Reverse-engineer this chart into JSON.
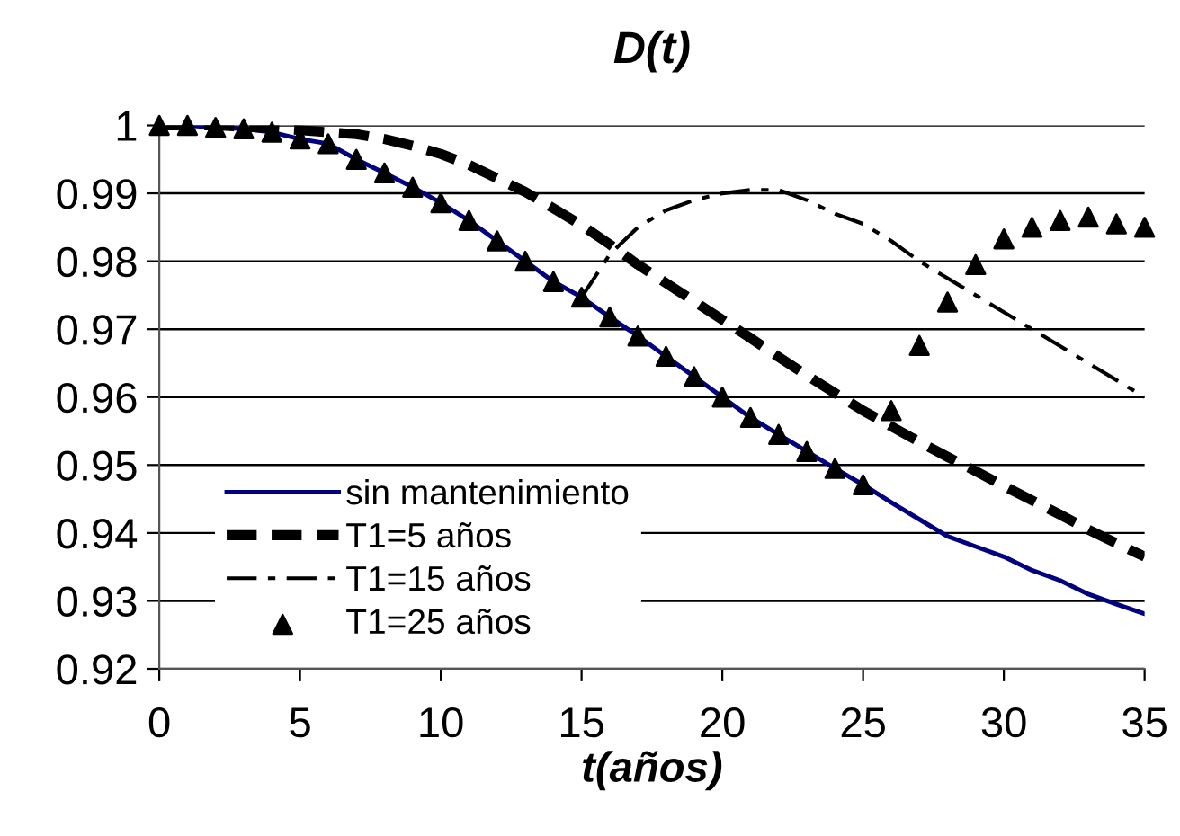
{
  "chart_data": {
    "type": "line",
    "title": "D(t)",
    "xlabel": "t(años)",
    "x": [
      0,
      1,
      2,
      3,
      4,
      5,
      6,
      7,
      8,
      9,
      10,
      11,
      12,
      13,
      14,
      15,
      16,
      17,
      18,
      19,
      20,
      21,
      22,
      23,
      24,
      25,
      26,
      27,
      28,
      29,
      30,
      31,
      32,
      33,
      34,
      35
    ],
    "series": [
      {
        "name": "sin mantenimiento",
        "color": "#000080",
        "line_style": "solid",
        "marker": "none",
        "values": [
          1.0,
          1.0,
          0.9997,
          0.9995,
          0.999,
          0.998,
          0.9973,
          0.995,
          0.993,
          0.9909,
          0.9886,
          0.986,
          0.983,
          0.98,
          0.977,
          0.9747,
          0.9718,
          0.969,
          0.966,
          0.963,
          0.96,
          0.957,
          0.9545,
          0.952,
          0.9495,
          0.9471,
          0.9445,
          0.942,
          0.9395,
          0.938,
          0.9365,
          0.9345,
          0.933,
          0.931,
          0.9295,
          0.9281
        ]
      },
      {
        "name": "T1=5 años",
        "color": "#000000",
        "line_style": "dashed",
        "marker": "none",
        "values": [
          1.0,
          1.0,
          1.0,
          0.9998,
          0.9996,
          0.9993,
          0.999,
          0.9987,
          0.998,
          0.997,
          0.9958,
          0.9942,
          0.9922,
          0.9902,
          0.9878,
          0.9853,
          0.9825,
          0.9795,
          0.9768,
          0.9741,
          0.9714,
          0.9687,
          0.9659,
          0.9632,
          0.9606,
          0.958,
          0.9557,
          0.9534,
          0.9512,
          0.9491,
          0.9469,
          0.9448,
          0.9427,
          0.9405,
          0.9385,
          0.9365
        ]
      },
      {
        "name": "T1=15 años",
        "color": "#000000",
        "line_style": "dashdot",
        "marker": "none",
        "x": [
          15,
          16,
          17,
          18,
          19,
          20,
          21,
          22,
          23,
          24,
          25,
          26,
          27,
          28,
          29,
          30,
          31,
          32,
          33,
          34,
          35
        ],
        "values": [
          0.9747,
          0.981,
          0.985,
          0.9875,
          0.989,
          0.99,
          0.9905,
          0.9905,
          0.989,
          0.987,
          0.9855,
          0.983,
          0.98,
          0.9775,
          0.975,
          0.9725,
          0.97,
          0.9675,
          0.965,
          0.9625,
          0.96
        ]
      },
      {
        "name": "T1=25 años",
        "color": "#000000",
        "type": "scatter",
        "marker": "triangle",
        "values": [
          1.0,
          1.0,
          0.9997,
          0.9995,
          0.999,
          0.998,
          0.9973,
          0.995,
          0.993,
          0.9909,
          0.9886,
          0.986,
          0.983,
          0.98,
          0.977,
          0.9747,
          0.9718,
          0.969,
          0.966,
          0.963,
          0.96,
          0.957,
          0.9545,
          0.952,
          0.9495,
          0.9471,
          0.958,
          0.9676,
          0.974,
          0.9795,
          0.9833,
          0.985,
          0.986,
          0.9865,
          0.9855,
          0.985
        ]
      }
    ],
    "xlim": [
      0,
      35
    ],
    "xticks": [
      0,
      5,
      10,
      15,
      20,
      25,
      30,
      35
    ],
    "ylim": [
      0.92,
      1.0
    ],
    "yticks": [
      {
        "value": 0.92,
        "label": "0.92"
      },
      {
        "value": 0.93,
        "label": "0.93"
      },
      {
        "value": 0.94,
        "label": "0.94"
      },
      {
        "value": 0.95,
        "label": "0.95"
      },
      {
        "value": 0.96,
        "label": "0.96"
      },
      {
        "value": 0.97,
        "label": "0.97"
      },
      {
        "value": 0.98,
        "label": "0.98"
      },
      {
        "value": 0.99,
        "label": "0.99"
      },
      {
        "value": 1.0,
        "label": "1"
      }
    ],
    "grid": "y",
    "legend": "bottom left"
  }
}
